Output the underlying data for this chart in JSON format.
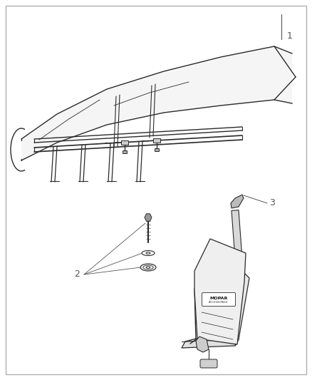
{
  "bg_color": "#ffffff",
  "border_color": "#b0b0b0",
  "line_color": "#2a2a2a",
  "label_color": "#555555",
  "fill_light": "#f0f0f0",
  "fill_mid": "#d8d8d8",
  "parts": {
    "label1": "1",
    "label2": "2",
    "label3": "3"
  }
}
